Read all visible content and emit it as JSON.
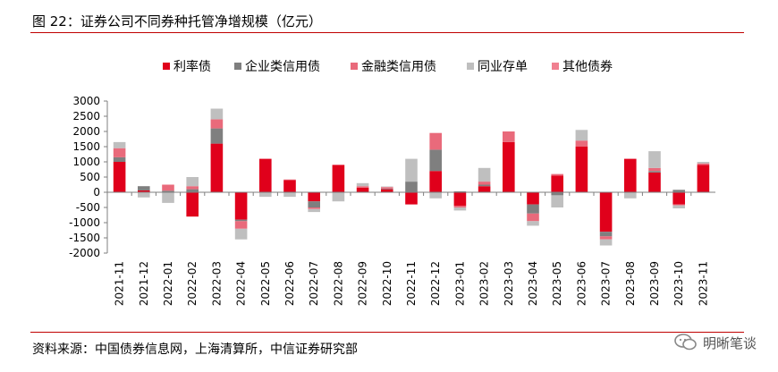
{
  "header": {
    "title": "图 22：证券公司不同券种托管净增规模（亿元）"
  },
  "footer": {
    "source": "资料来源：中国债券信息网，上海清算所，中信证券研究部",
    "brand": "明晰笔谈"
  },
  "colors": {
    "rule": "#c00000",
    "axis": "#7f7f7f"
  },
  "chart_data": {
    "type": "bar",
    "stacked": true,
    "title": "",
    "xlabel": "",
    "ylabel": "",
    "ylim": [
      -2000,
      3000
    ],
    "yticks": [
      3000,
      2500,
      2000,
      1500,
      1000,
      500,
      0,
      -500,
      -1000,
      -1500,
      -2000
    ],
    "legend_position": "top",
    "grid": false,
    "categories": [
      "2021-11",
      "2021-12",
      "2022-01",
      "2022-02",
      "2022-03",
      "2022-04",
      "2022-05",
      "2022-06",
      "2022-07",
      "2022-08",
      "2022-09",
      "2022-10",
      "2022-11",
      "2022-12",
      "2023-01",
      "2023-02",
      "2023-03",
      "2023-04",
      "2023-05",
      "2023-06",
      "2023-07",
      "2023-08",
      "2023-09",
      "2023-10",
      "2023-11"
    ],
    "series": [
      {
        "name": "利率债",
        "color": "#e0001b",
        "values": [
          1000,
          60,
          0,
          -800,
          1600,
          -900,
          1100,
          400,
          -300,
          900,
          150,
          100,
          -400,
          700,
          -450,
          200,
          1650,
          -400,
          550,
          1500,
          -1300,
          1100,
          650,
          -400,
          900
        ]
      },
      {
        "name": "企业类信用债",
        "color": "#7f7f7f",
        "values": [
          150,
          140,
          50,
          100,
          500,
          -50,
          0,
          0,
          -200,
          0,
          0,
          20,
          350,
          700,
          30,
          50,
          0,
          -300,
          -100,
          0,
          -150,
          0,
          50,
          80,
          0
        ]
      },
      {
        "name": "金融类信用债",
        "color": "#e96a7b",
        "values": [
          300,
          -20,
          200,
          100,
          300,
          -250,
          0,
          20,
          -50,
          0,
          50,
          50,
          0,
          550,
          -50,
          100,
          350,
          -250,
          50,
          200,
          -100,
          0,
          100,
          -30,
          50
        ]
      },
      {
        "name": "同业存单",
        "color": "#bfbfbf",
        "values": [
          200,
          -150,
          -350,
          300,
          350,
          -350,
          -150,
          -150,
          -100,
          -300,
          100,
          20,
          750,
          -200,
          -100,
          450,
          0,
          -150,
          -400,
          350,
          -200,
          -200,
          550,
          -100,
          50
        ]
      },
      {
        "name": "其他债券",
        "color": "#f08090",
        "values": [
          0,
          0,
          0,
          0,
          0,
          0,
          0,
          0,
          0,
          0,
          0,
          0,
          0,
          0,
          0,
          0,
          0,
          0,
          0,
          0,
          0,
          0,
          0,
          0,
          0
        ]
      }
    ]
  }
}
